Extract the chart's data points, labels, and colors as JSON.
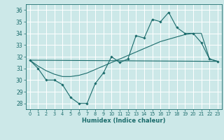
{
  "xlabel": "Humidex (Indice chaleur)",
  "bg_color": "#cce8e8",
  "grid_color": "#ffffff",
  "line_color": "#1a6b6b",
  "xlim": [
    -0.5,
    23.5
  ],
  "ylim": [
    27.5,
    36.5
  ],
  "yticks": [
    28,
    29,
    30,
    31,
    32,
    33,
    34,
    35,
    36
  ],
  "xticks": [
    0,
    1,
    2,
    3,
    4,
    5,
    6,
    7,
    8,
    9,
    10,
    11,
    12,
    13,
    14,
    15,
    16,
    17,
    18,
    19,
    20,
    21,
    22,
    23
  ],
  "line1_x": [
    0,
    1,
    2,
    3,
    4,
    5,
    6,
    7,
    8,
    9,
    10,
    11,
    12,
    13,
    14,
    15,
    16,
    17,
    18,
    19,
    20,
    21,
    22,
    23
  ],
  "line1_y": [
    31.7,
    31.0,
    30.0,
    30.0,
    29.6,
    28.5,
    28.0,
    28.0,
    29.7,
    30.6,
    32.0,
    31.5,
    31.8,
    33.8,
    33.6,
    35.2,
    35.0,
    35.8,
    34.5,
    34.0,
    34.0,
    33.2,
    31.8,
    31.6
  ],
  "line2_x": [
    0,
    1,
    2,
    3,
    4,
    5,
    6,
    7,
    8,
    9,
    10,
    11,
    12,
    13,
    14,
    15,
    16,
    17,
    18,
    19,
    20,
    21,
    22,
    23
  ],
  "line2_y": [
    31.7,
    31.2,
    30.8,
    30.5,
    30.3,
    30.3,
    30.4,
    30.6,
    30.9,
    31.2,
    31.5,
    31.8,
    32.1,
    32.4,
    32.7,
    33.0,
    33.3,
    33.5,
    33.7,
    33.9,
    34.0,
    34.0,
    31.8,
    31.6
  ],
  "line3_x": [
    0,
    23
  ],
  "line3_y": [
    31.7,
    31.6
  ]
}
